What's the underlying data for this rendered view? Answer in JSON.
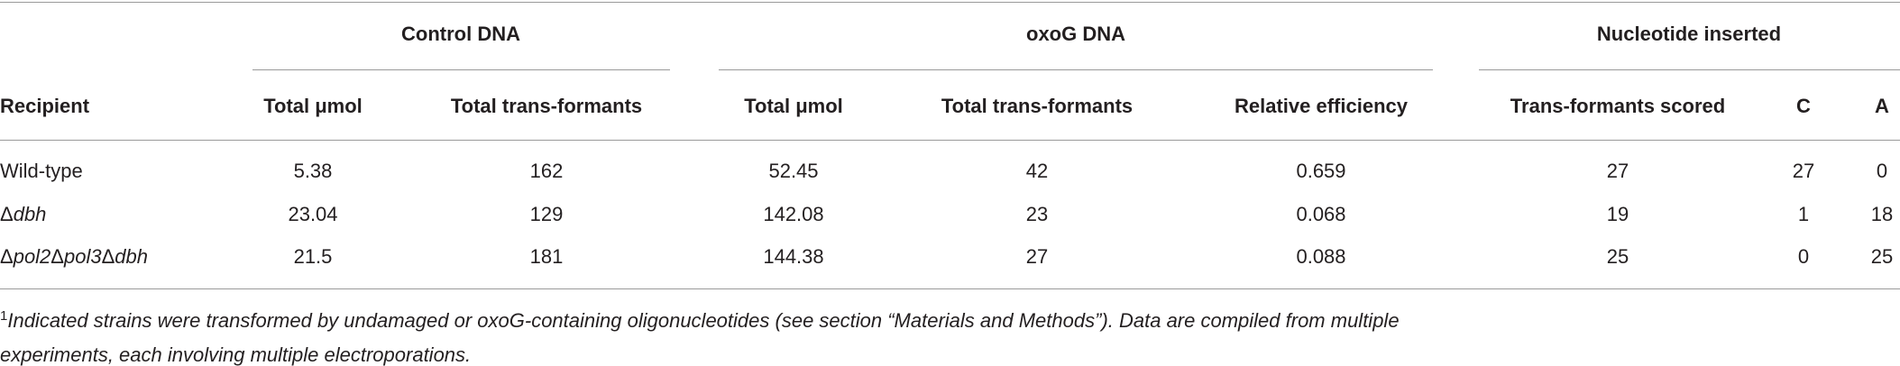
{
  "table": {
    "group_headers": [
      "Control DNA",
      "oxoG DNA",
      "Nucleotide inserted"
    ],
    "column_headers": [
      "Recipient",
      "Total μmol",
      "Total trans-formants",
      "Total μmol",
      "Total trans-formants",
      "Relative efficiency",
      "Trans-formants scored",
      "C",
      "A"
    ],
    "rows": [
      {
        "recipient": [
          {
            "text": "Wild-type"
          }
        ],
        "values": [
          5.38,
          162,
          52.45,
          42,
          0.659,
          27,
          27,
          0
        ]
      },
      {
        "recipient": [
          {
            "text": "Δ"
          },
          {
            "text": "dbh",
            "italic": true
          }
        ],
        "values": [
          23.04,
          129,
          142.08,
          23,
          0.068,
          19,
          1,
          18
        ]
      },
      {
        "recipient": [
          {
            "text": "Δ"
          },
          {
            "text": "pol2",
            "italic": true
          },
          {
            "text": "Δ"
          },
          {
            "text": "pol3",
            "italic": true
          },
          {
            "text": "Δ"
          },
          {
            "text": "dbh",
            "italic": true
          }
        ],
        "values": [
          21.5,
          181,
          144.38,
          27,
          0.088,
          25,
          0,
          25
        ]
      }
    ]
  },
  "footnote": {
    "marker": "1",
    "lines": [
      "Indicated strains were transformed by undamaged or oxoG-containing oligonucleotides (see section “Materials and Methods”). Data are compiled from multiple",
      "experiments, each involving multiple electroporations."
    ]
  }
}
